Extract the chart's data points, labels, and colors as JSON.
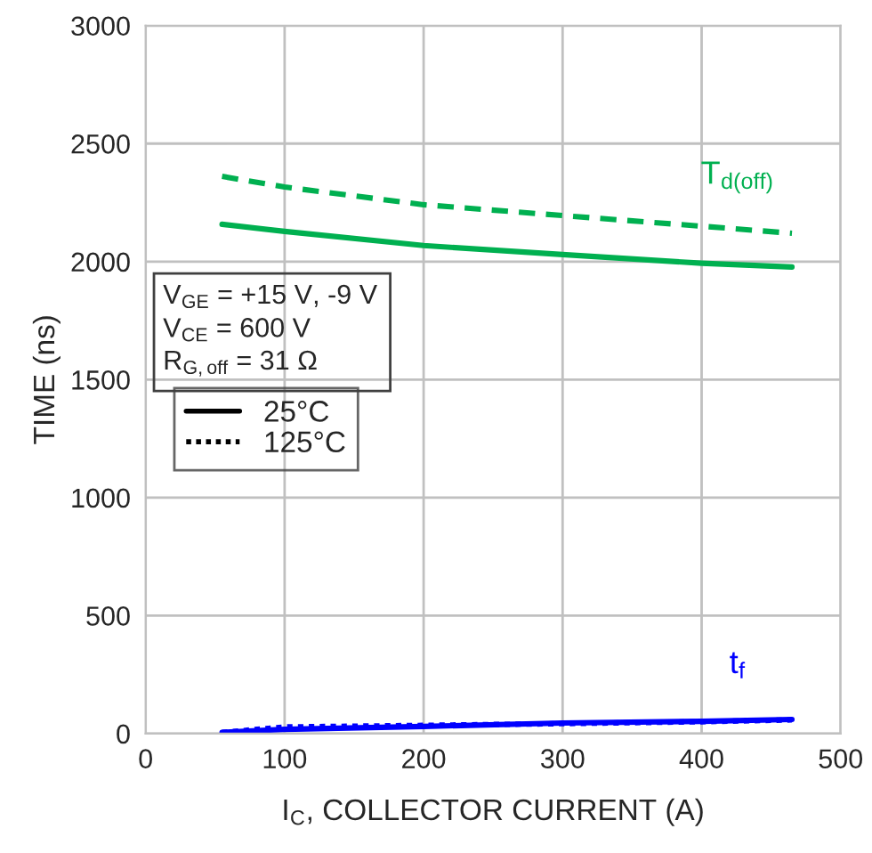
{
  "chart_data": {
    "type": "line",
    "xlabel": "I$_{C}$, COLLECTOR CURRENT (A)",
    "ylabel": "TIME (ns)",
    "xlim": [
      0,
      500
    ],
    "xticks": [
      0,
      100,
      200,
      300,
      400,
      500
    ],
    "ylim": [
      0,
      3000
    ],
    "yticks": [
      0,
      500,
      1000,
      1500,
      2000,
      2500,
      3000
    ],
    "grid": true,
    "series": [
      {
        "color": "#00b050",
        "line_style": "solid",
        "x": [
          55,
          100,
          200,
          300,
          400,
          465
        ],
        "values": [
          2158,
          2128,
          2068,
          2030,
          1993,
          1977
        ]
      },
      {
        "color": "#00b050",
        "line_style": "dashed",
        "x": [
          55,
          100,
          200,
          300,
          400,
          465
        ],
        "values": [
          2361,
          2316,
          2241,
          2195,
          2150,
          2120
        ]
      },
      {
        "color": "#0000ff",
        "line_style": "solid",
        "x": [
          55,
          100,
          200,
          300,
          400,
          465
        ],
        "values": [
          5,
          18,
          30,
          45,
          52,
          60
        ]
      },
      {
        "color": "#0000ff",
        "line_style": "dotted",
        "x": [
          55,
          100,
          200,
          300,
          400,
          465
        ],
        "values": [
          5,
          28,
          35,
          42,
          50,
          58
        ]
      }
    ],
    "annotations": [
      "T$_{d(off)}$",
      "t$_{f}$",
      "V$_{GE}$ = +15 V, -9 V",
      "V$_{CE}$ = 600 V",
      "R$_{G,off}$ = 31 Ω",
      "25°C",
      "125°C"
    ]
  }
}
